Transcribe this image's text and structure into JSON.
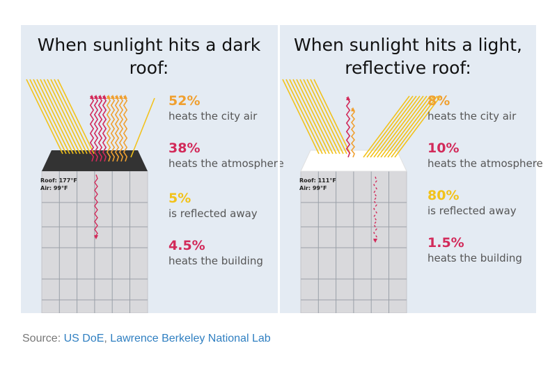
{
  "dark": {
    "title_line1": "When sunlight hits a dark",
    "title_line2": "roof:",
    "roof_temp": "Roof: 177°F",
    "air_temp": "Air: 99°F",
    "stats": [
      {
        "value": "52%",
        "label": "heats the city air",
        "color": "#f0a030"
      },
      {
        "value": "38%",
        "label": "heats the atmosphere",
        "color": "#d22a5a"
      },
      {
        "value": "5%",
        "label": "is reflected away",
        "color": "#f2c21b"
      },
      {
        "value": "4.5%",
        "label": "heats the building",
        "color": "#d22a5a"
      }
    ]
  },
  "light": {
    "title_line1": "When sunlight hits a light,",
    "title_line2": "reflective roof:",
    "roof_temp": "Roof: 111°F",
    "air_temp": "Air: 99°F",
    "stats": [
      {
        "value": "8%",
        "label": "heats the city air",
        "color": "#f0a030"
      },
      {
        "value": "10%",
        "label": "heats the atmosphere",
        "color": "#d22a5a"
      },
      {
        "value": "80%",
        "label": "is reflected away",
        "color": "#f2c21b"
      },
      {
        "value": "1.5%",
        "label": "heats the building",
        "color": "#d22a5a"
      }
    ]
  },
  "colors": {
    "sunlight": "#f2c21b",
    "heat_orange": "#f0a030",
    "heat_red": "#d22a5a",
    "dark_roof": "#333333",
    "light_roof": "#ffffff",
    "building": "#d9d9dc"
  },
  "source": {
    "prefix": "Source: ",
    "link1": "US DoE",
    "separator": ", ",
    "link2": "Lawrence Berkeley National Lab"
  }
}
